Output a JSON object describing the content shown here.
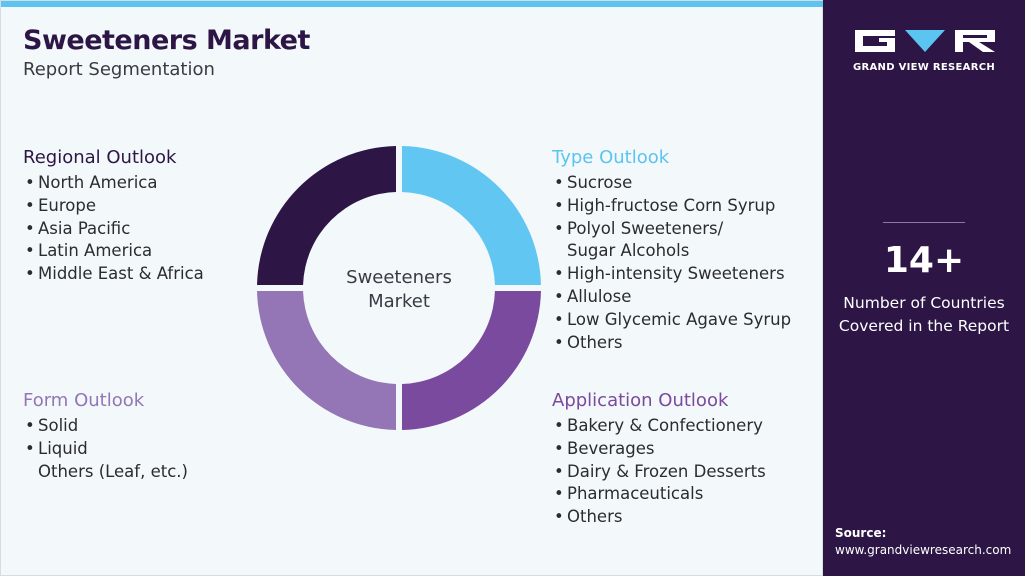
{
  "header": {
    "title": "Sweeteners Market",
    "subtitle": "Report Segmentation"
  },
  "center_label_line1": "Sweeteners",
  "center_label_line2": "Market",
  "segments": {
    "regional": {
      "title": "Regional Outlook",
      "color": "#2d1646",
      "items": [
        "North America",
        "Europe",
        "Asia Pacific",
        "Latin America",
        "Middle East & Africa"
      ]
    },
    "type": {
      "title": "Type Outlook",
      "color": "#5bc4f1",
      "items": [
        "Sucrose",
        "High-fructose Corn Syrup",
        "Polyol Sweeteners/",
        "Sugar Alcohols",
        "High-intensity Sweeteners",
        "Allulose",
        "Low Glycemic Agave Syrup",
        "Others"
      ]
    },
    "form": {
      "title": "Form Outlook",
      "color": "#9476b6",
      "items": [
        "Solid",
        "Liquid",
        "Others (Leaf, etc.)"
      ]
    },
    "application": {
      "title": "Application Outlook",
      "color": "#7a4a9e",
      "items": [
        "Bakery & Confectionery",
        "Beverages",
        "Dairy & Frozen Desserts",
        "Pharmaceuticals",
        "Others"
      ]
    }
  },
  "donut_colors": {
    "top_left": "#2d1646",
    "top_right": "#62c6f2",
    "bottom_right": "#7a4a9e",
    "bottom_left": "#9476b6"
  },
  "sidebar": {
    "brand": "GRAND VIEW RESEARCH",
    "stat_value": "14+",
    "stat_line1": "Number of Countries",
    "stat_line2": "Covered in the Report",
    "source_label": "Source:",
    "source_url": "www.grandviewresearch.com"
  }
}
